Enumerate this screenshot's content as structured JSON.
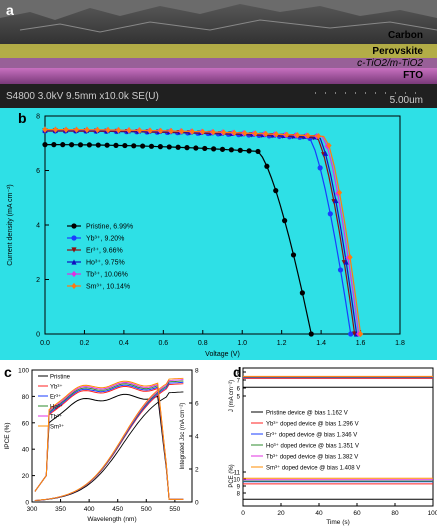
{
  "panel_a": {
    "label": "a",
    "layers": [
      "Carbon",
      "Perovskite",
      "c-TiO2/m-TiO2",
      "FTO"
    ],
    "info_bar": "S4800 3.0kV 9.5mm x10.0k SE(U)",
    "scale_label": "5.00um"
  },
  "panel_b": {
    "label": "b"
  },
  "panel_c": {
    "label": "c"
  },
  "panel_d": {
    "label": "d"
  },
  "chart_data": [
    {
      "id": "b",
      "type": "line",
      "xlabel": "Voltage (V)",
      "ylabel": "Current density (mA cm⁻²)",
      "xlim": [
        0,
        1.8
      ],
      "ylim": [
        0,
        8
      ],
      "xticks": [
        "0.0",
        "0.2",
        "0.4",
        "0.6",
        "0.8",
        "1.0",
        "1.2",
        "1.4",
        "1.6",
        "1.8"
      ],
      "yticks": [
        "0",
        "2",
        "4",
        "6",
        "8"
      ],
      "background": "#33e6e8",
      "legend_position": "lower-left",
      "series": [
        {
          "name": "Pristine, 6.99%",
          "color": "#000000",
          "marker": "circle",
          "jsc": 6.95,
          "voc": 1.35,
          "knee": 1.08
        },
        {
          "name": "Yb³⁺, 9.20%",
          "color": "#1a3cff",
          "marker": "circle",
          "jsc": 7.45,
          "voc": 1.55,
          "knee": 1.34
        },
        {
          "name": "Er³⁺, 9.66%",
          "color": "#8b1010",
          "marker": "triangle-down",
          "jsc": 7.45,
          "voc": 1.57,
          "knee": 1.38
        },
        {
          "name": "Ho³⁺, 9.75%",
          "color": "#1010c0",
          "marker": "triangle-up",
          "jsc": 7.48,
          "voc": 1.58,
          "knee": 1.39
        },
        {
          "name": "Tb³⁺, 10.06%",
          "color": "#e030e0",
          "marker": "diamond",
          "jsc": 7.5,
          "voc": 1.59,
          "knee": 1.41
        },
        {
          "name": "Sm³⁺, 10.14%",
          "color": "#ff7a10",
          "marker": "diamond",
          "jsc": 7.5,
          "voc": 1.6,
          "knee": 1.42
        }
      ]
    },
    {
      "id": "c",
      "type": "line",
      "xlabel": "Wavelength (nm)",
      "ylabel": "IPCE (%)",
      "y2label": "Integrated Jsc (mA cm⁻²)",
      "xlim": [
        300,
        580
      ],
      "ylim": [
        0,
        100
      ],
      "y2lim": [
        0,
        8
      ],
      "xticks": [
        "300",
        "350",
        "400",
        "450",
        "500",
        "550"
      ],
      "yticks": [
        "0",
        "20",
        "40",
        "60",
        "80",
        "100"
      ],
      "y2ticks": [
        "0",
        "2",
        "4",
        "6",
        "8"
      ],
      "series": [
        {
          "name": "Pristine",
          "color": "#000000",
          "peak": 80
        },
        {
          "name": "Yb³⁺",
          "color": "#ff2020",
          "peak": 86
        },
        {
          "name": "Er³⁺",
          "color": "#1a3cff",
          "peak": 87
        },
        {
          "name": "Ho³⁺",
          "color": "#2e8b2e",
          "peak": 88
        },
        {
          "name": "Tb³⁺",
          "color": "#e030e0",
          "peak": 89
        },
        {
          "name": "Sm³⁺",
          "color": "#ff8c00",
          "peak": 90
        }
      ]
    },
    {
      "id": "d",
      "type": "line",
      "xlabel": "Time (s)",
      "ylabel_top": "J (mA cm⁻²)",
      "ylabel_bottom": "PCE (%)",
      "xlim": [
        0,
        100
      ],
      "xticks": [
        "0",
        "20",
        "40",
        "60",
        "80",
        "100"
      ],
      "yticks_top": [
        "5",
        "6",
        "7",
        "8"
      ],
      "yticks_bottom": [
        "8",
        "9",
        "10",
        "11"
      ],
      "series": [
        {
          "name": "Pristine device @ bias 1.162 V",
          "color": "#000000",
          "j": 6.1,
          "pce": 7.1
        },
        {
          "name": "Yb³⁺ doped device @ bias 1.296 V",
          "color": "#ff2020",
          "j": 7.2,
          "pce": 9.3
        },
        {
          "name": "Er³⁺ doped device @ bias 1.346 V",
          "color": "#1a3cff",
          "j": 7.3,
          "pce": 9.6
        },
        {
          "name": "Ho³⁺ doped device @ bias 1.351 V",
          "color": "#2e8b2e",
          "j": 7.35,
          "pce": 9.7
        },
        {
          "name": "Tb³⁺ doped device @ bias 1.382 V",
          "color": "#e030e0",
          "j": 7.4,
          "pce": 9.9
        },
        {
          "name": "Sm³⁺ doped device @ bias 1.408 V",
          "color": "#ff8c00",
          "j": 7.45,
          "pce": 10.1
        }
      ]
    }
  ]
}
